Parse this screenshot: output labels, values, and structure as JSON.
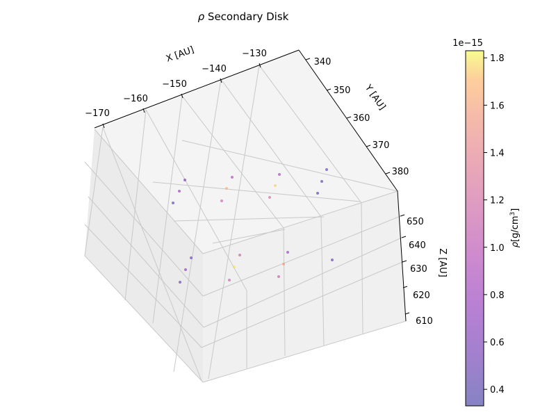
{
  "chart_data": {
    "type": "scatter",
    "projection": "3d",
    "title": "ρ Secondary Disk",
    "title_symbol": "ρ",
    "title_rest": " Secondary Disk",
    "xlabel": "X [AU]",
    "ylabel": "Y [AU]",
    "zlabel": "Z [AU]",
    "xticks": [
      "−170",
      "−160",
      "−150",
      "−140",
      "−130"
    ],
    "yticks": [
      "340",
      "350",
      "360",
      "370",
      "380"
    ],
    "zticks": [
      "610",
      "620",
      "630",
      "640",
      "650"
    ],
    "grid": true,
    "colorbar": {
      "label": "ρ[g/cm³]",
      "label_symbol": "ρ",
      "label_rest": "[g/cm",
      "label_sup": "3",
      "label_end": "]",
      "offset_text": "1e−15",
      "ticks": [
        "0.4",
        "0.6",
        "0.8",
        "1.0",
        "1.2",
        "1.4",
        "1.6",
        "1.8"
      ],
      "range": [
        0.33,
        1.83
      ],
      "colormap": "plasma",
      "alpha": 0.5
    },
    "points": [
      {
        "v": 0.6
      },
      {
        "v": 0.75
      },
      {
        "v": 0.4
      },
      {
        "v": 0.9
      },
      {
        "v": 1.7
      },
      {
        "v": 1.15
      },
      {
        "v": 0.85
      },
      {
        "v": 1.2
      },
      {
        "v": 1.75
      },
      {
        "v": 0.45
      },
      {
        "v": 0.45
      },
      {
        "v": 0.4
      },
      {
        "v": 0.55
      },
      {
        "v": 0.7
      },
      {
        "v": 0.5
      },
      {
        "v": 1.1
      },
      {
        "v": 1.8
      },
      {
        "v": 1.15
      },
      {
        "v": 0.8
      },
      {
        "v": 1.6
      },
      {
        "v": 1.1
      },
      {
        "v": 0.45
      }
    ]
  }
}
